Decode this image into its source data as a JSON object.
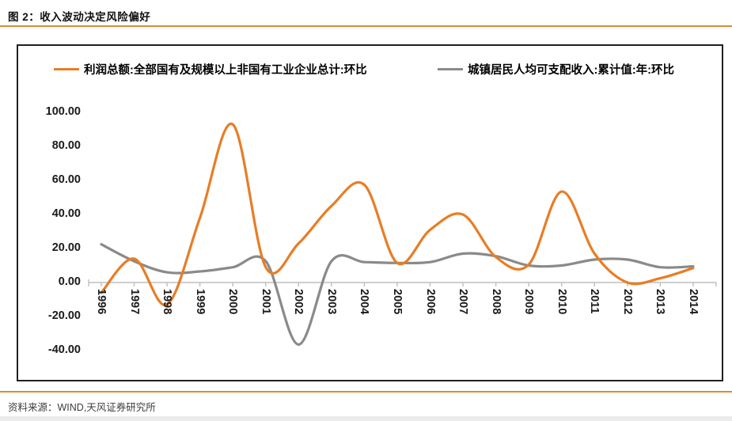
{
  "header": {
    "title": "图 2：收入波动决定风险偏好"
  },
  "footer": {
    "source": "资料来源：WIND,天风证券研究所"
  },
  "colors": {
    "accent_rule": "#DD8A33",
    "series_profit": "#E87D25",
    "series_income": "#8A8A8A",
    "axis_line": "#BFBFBF",
    "panel_border": "#202020"
  },
  "chart_data": {
    "type": "line",
    "title": "",
    "xlabel": "",
    "ylabel": "",
    "grid": false,
    "smooth": true,
    "legend_position": "top",
    "ylim": [
      -40,
      100
    ],
    "ytick_values": [
      100,
      80,
      60,
      40,
      20,
      0,
      -20,
      -40
    ],
    "ytick_labels": [
      "100.00",
      "80.00",
      "60.00",
      "40.00",
      "20.00",
      "0.00",
      "-20.00",
      "-40.00"
    ],
    "x": [
      1996,
      1997,
      1998,
      1999,
      2000,
      2001,
      2002,
      2003,
      2004,
      2005,
      2006,
      2007,
      2008,
      2009,
      2010,
      2011,
      2012,
      2013,
      2014
    ],
    "series": [
      {
        "name": "利润总额:全部国有及规模以上非国有工业企业总计:环比",
        "color_key": "series_profit",
        "values": [
          -6,
          14,
          -13,
          38,
          93,
          9,
          23,
          45,
          57.5,
          11.5,
          31,
          40,
          15,
          10.5,
          53.5,
          17,
          0,
          2.5,
          8.5
        ]
      },
      {
        "name": "城镇居民人均可支配收入:累计值:年:环比",
        "color_key": "series_income",
        "values": [
          22.5,
          12.5,
          6,
          6.5,
          9,
          12.5,
          -36.5,
          12.5,
          12,
          11.5,
          12,
          17,
          15.5,
          10,
          10,
          13.5,
          13.5,
          9,
          9.5
        ]
      }
    ]
  }
}
